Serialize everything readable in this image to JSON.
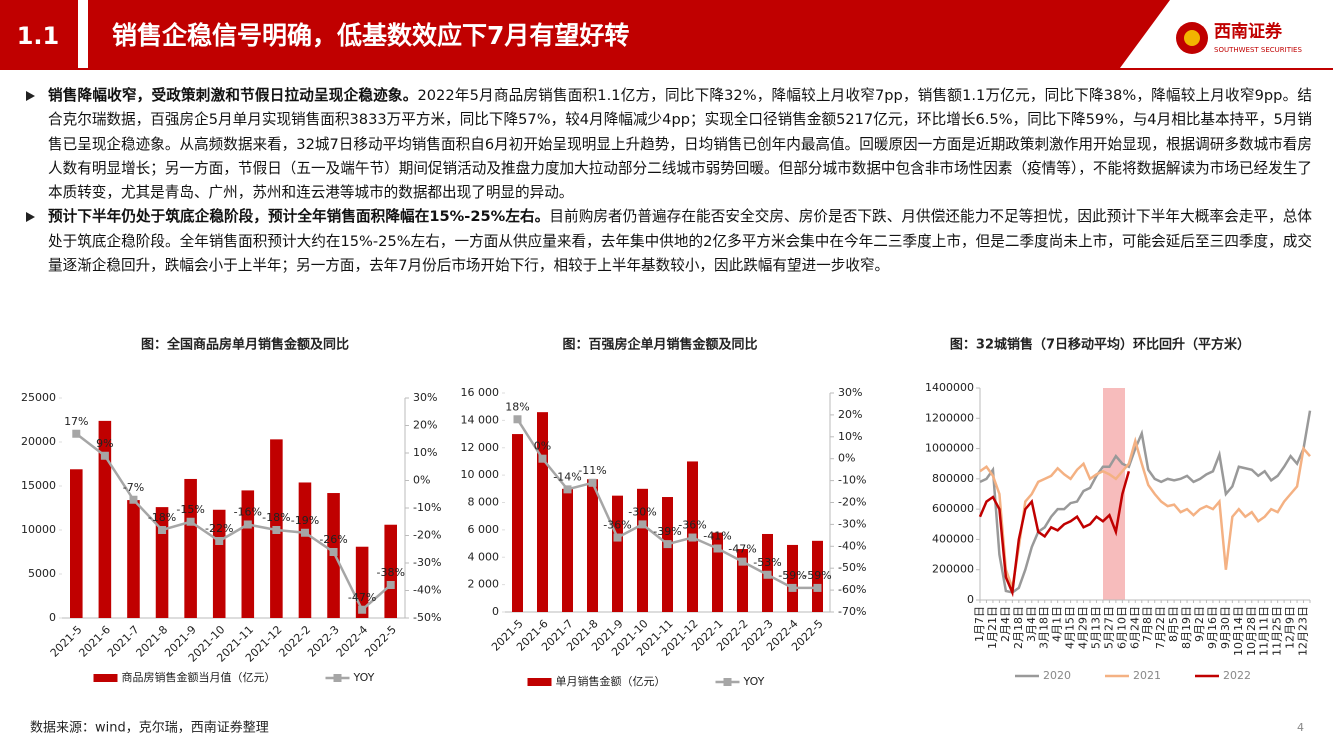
{
  "header": {
    "section": "1.1",
    "title": "销售企稳信号明确，低基数效应下7月有望好转",
    "logo_name": "西南证券",
    "logo_english": "SOUTHWEST SECURITIES"
  },
  "bullets": [
    {
      "lead": "销售降幅收窄，受政策刺激和节假日拉动呈现企稳迹象。",
      "text": "2022年5月商品房销售面积1.1亿方，同比下降32%，降幅较上月收窄7pp，销售额1.1万亿元，同比下降38%，降幅较上月收窄9pp。结合克尔瑞数据，百强房企5月单月实现销售面积3833万平方米，同比下降57%，较4月降幅减少4pp；实现全口径销售金额5217亿元，环比增长6.5%，同比下降59%，与4月相比基本持平，5月销售已呈现企稳迹象。从高频数据来看，32城7日移动平均销售面积自6月初开始呈现明显上升趋势，日均销售已创年内最高值。回暖原因一方面是近期政策刺激作用开始显现，根据调研多数城市看房人数有明显增长；另一方面，节假日（五一及端午节）期间促销活动及推盘力度加大拉动部分二线城市弱势回暖。但部分城市数据中包含非市场性因素（疫情等），不能将数据解读为市场已经发生了本质转变，尤其是青岛、广州，苏州和连云港等城市的数据都出现了明显的异动。"
    },
    {
      "lead": "预计下半年仍处于筑底企稳阶段，预计全年销售面积降幅在15%-25%左右。",
      "text": "目前购房者仍普遍存在能否安全交房、房价是否下跌、月供偿还能力不足等担忧，因此预计下半年大概率会走平，总体处于筑底企稳阶段。全年销售面积预计大约在15%-25%左右，一方面从供应量来看，去年集中供地的2亿多平方米会集中在今年二三季度上市，但是二季度尚未上市，可能会延后至三四季度，成交量逐渐企稳回升，跌幅会小于上半年；另一方面，去年7月份后市场开始下行，相较于上半年基数较小，因此跌幅有望进一步收窄。"
    }
  ],
  "chart_data": [
    {
      "type": "combo",
      "title": "图：全国商品房单月销售金额及同比",
      "categories": [
        "2021-5",
        "2021-6",
        "2021-7",
        "2021-8",
        "2021-9",
        "2021-10",
        "2021-11",
        "2021-12",
        "2022-2",
        "2022-3",
        "2022-4",
        "2022-5"
      ],
      "series": [
        {
          "name": "商品房销售金额当月值（亿元）",
          "type": "bar",
          "color": "#c00000",
          "values": [
            16900,
            22400,
            13400,
            12600,
            15800,
            12300,
            14500,
            20300,
            15400,
            14200,
            8100,
            10600
          ]
        },
        {
          "name": "YOY",
          "type": "line",
          "axis": "y2",
          "color": "#a6a6a6",
          "values": [
            17,
            9,
            -7,
            -18,
            -15,
            -22,
            -16,
            -18,
            -19,
            -26,
            -47,
            -38
          ],
          "value_labels": [
            "17%",
            "9%",
            "-7%",
            "-18%",
            "-15%",
            "-22%",
            "-16%",
            "-18%",
            "-19%",
            "-26%",
            "-47%",
            "-38%"
          ]
        }
      ],
      "ylim": [
        0,
        25000
      ],
      "yticks": [
        0,
        5000,
        10000,
        15000,
        20000,
        25000
      ],
      "y2lim": [
        -50,
        30
      ],
      "y2ticks": [
        {
          "value": -50,
          "label": "-50%"
        },
        {
          "value": -40,
          "label": "-40%"
        },
        {
          "value": -30,
          "label": "-30%"
        },
        {
          "value": -20,
          "label": "-20%"
        },
        {
          "value": -10,
          "label": "-10%"
        },
        {
          "value": 0,
          "label": "0%"
        },
        {
          "value": 10,
          "label": "10%"
        },
        {
          "value": 20,
          "label": "20%"
        },
        {
          "value": 30,
          "label": "30%"
        }
      ]
    },
    {
      "type": "combo",
      "title": "图：百强房企单月销售金额及同比",
      "categories": [
        "2021-5",
        "2021-6",
        "2021-7",
        "2021-8",
        "2021-9",
        "2021-10",
        "2021-11",
        "2021-12",
        "2022-1",
        "2022-2",
        "2022-3",
        "2022-4",
        "2022-5"
      ],
      "series": [
        {
          "name": "单月销售金额（亿元）",
          "type": "bar",
          "color": "#c00000",
          "values": [
            13000,
            14600,
            9000,
            9700,
            8500,
            9000,
            8400,
            11000,
            5800,
            4600,
            5700,
            4900,
            5200
          ]
        },
        {
          "name": "YOY",
          "type": "line",
          "axis": "y2",
          "color": "#a6a6a6",
          "values": [
            18,
            0,
            -14,
            -11,
            -36,
            -30,
            -39,
            -36,
            -41,
            -47,
            -53,
            -59,
            -59
          ],
          "value_labels": [
            "18%",
            "0%",
            "-14%",
            "-11%",
            "-36%",
            "-30%",
            "-39%",
            "-36%",
            "-41%",
            "-47%",
            "-53%",
            "-59%",
            "-59%"
          ]
        }
      ],
      "ylim": [
        0,
        16000
      ],
      "yticks": [
        0,
        {
          "value": 2000,
          "label": "2 000"
        },
        {
          "value": 4000,
          "label": "4 000"
        },
        {
          "value": 6000,
          "label": "6 000"
        },
        {
          "value": 8000,
          "label": "8 000"
        },
        {
          "value": 10000,
          "label": "10 000"
        },
        {
          "value": 12000,
          "label": "12 000"
        },
        {
          "value": 14000,
          "label": "14 000"
        },
        {
          "value": 16000,
          "label": "16 000"
        }
      ],
      "y2lim": [
        -70,
        30
      ],
      "y2ticks": [
        {
          "value": -70,
          "label": "-70%"
        },
        {
          "value": -60,
          "label": "-60%"
        },
        {
          "value": -50,
          "label": "-50%"
        },
        {
          "value": -40,
          "label": "-40%"
        },
        {
          "value": -30,
          "label": "-30%"
        },
        {
          "value": -20,
          "label": "-20%"
        },
        {
          "value": -10,
          "label": "-10%"
        },
        {
          "value": 0,
          "label": "0%"
        },
        {
          "value": 10,
          "label": "10%"
        },
        {
          "value": 20,
          "label": "20%"
        },
        {
          "value": 30,
          "label": "30%"
        }
      ]
    },
    {
      "type": "line",
      "title": "图：32城销售（7日移动平均）环比回升（平方米）",
      "categories": [
        "1月7日",
        null,
        "1月21日",
        null,
        "2月4日",
        null,
        "2月18日",
        null,
        "3月4日",
        null,
        "3月18日",
        null,
        "4月1日",
        null,
        "4月15日",
        null,
        "4月29日",
        null,
        "5月13日",
        null,
        "5月27日",
        null,
        "6月10日",
        null,
        "6月24日",
        null,
        "7月8日",
        null,
        "7月22日",
        null,
        "8月5日",
        null,
        "8月19日",
        null,
        "9月2日",
        null,
        "9月16日",
        null,
        "9月30日",
        null,
        "10月14日",
        null,
        "10月28日",
        null,
        "11月11日",
        null,
        "11月25日",
        null,
        "12月9日",
        null,
        "12月23日",
        null
      ],
      "series": [
        {
          "name": "2020",
          "color": "#999999",
          "values": [
            780000,
            800000,
            860000,
            300000,
            60000,
            50000,
            80000,
            200000,
            350000,
            450000,
            480000,
            550000,
            600000,
            600000,
            640000,
            650000,
            720000,
            740000,
            820000,
            880000,
            880000,
            950000,
            900000,
            880000,
            1000000,
            1100000,
            860000,
            800000,
            780000,
            800000,
            790000,
            800000,
            820000,
            780000,
            800000,
            830000,
            850000,
            960000,
            700000,
            750000,
            880000,
            870000,
            860000,
            820000,
            850000,
            790000,
            820000,
            880000,
            950000,
            900000,
            1000000,
            1250000
          ]
        },
        {
          "name": "2021",
          "color": "#f4b183",
          "values": [
            850000,
            880000,
            820000,
            700000,
            200000,
            80000,
            350000,
            650000,
            700000,
            780000,
            800000,
            820000,
            870000,
            830000,
            800000,
            860000,
            900000,
            800000,
            830000,
            850000,
            830000,
            800000,
            850000,
            900000,
            1050000,
            900000,
            760000,
            700000,
            650000,
            620000,
            630000,
            580000,
            600000,
            560000,
            600000,
            620000,
            600000,
            650000,
            200000,
            550000,
            600000,
            550000,
            580000,
            520000,
            550000,
            600000,
            580000,
            650000,
            700000,
            750000,
            1000000,
            950000
          ]
        },
        {
          "name": "2022",
          "color": "#c00000",
          "values": [
            550000,
            650000,
            680000,
            600000,
            150000,
            50000,
            400000,
            600000,
            650000,
            450000,
            420000,
            480000,
            460000,
            500000,
            520000,
            550000,
            480000,
            500000,
            550000,
            520000,
            560000,
            450000,
            700000,
            850000,
            null,
            null,
            null,
            null,
            null,
            null,
            null,
            null,
            null,
            null,
            null,
            null,
            null,
            null,
            null,
            null,
            null,
            null,
            null,
            null,
            null,
            null,
            null,
            null,
            null,
            null,
            null,
            null
          ]
        }
      ],
      "ylim": [
        0,
        1400000
      ],
      "yticks": [
        0,
        200000,
        400000,
        600000,
        800000,
        1000000,
        1200000,
        1400000
      ]
    }
  ],
  "footer": {
    "source": "数据来源：wind，克尔瑞，西南证券整理",
    "page": "4"
  }
}
